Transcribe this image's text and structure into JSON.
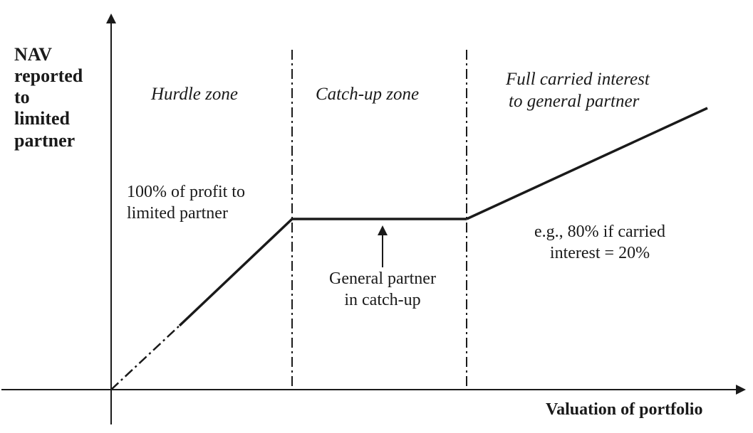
{
  "diagram": {
    "y_axis_label_lines": [
      "NAV",
      "reported",
      "to",
      "limited",
      "partner"
    ],
    "x_axis_label": "Valuation of portfolio",
    "zones": {
      "hurdle": "Hurdle zone",
      "catch_up": "Catch-up zone",
      "full_carry_lines": [
        "Full carried interest",
        "to general partner"
      ]
    },
    "annotations": {
      "hurdle_note_lines": [
        "100% of profit to",
        "limited partner"
      ],
      "catch_up_note_lines": [
        "General partner",
        "in catch-up"
      ],
      "full_carry_note_lines": [
        "e.g., 80% if carried",
        "interest = 20%"
      ]
    },
    "colors": {
      "ink": "#1a1a1a",
      "background": "#ffffff"
    }
  }
}
